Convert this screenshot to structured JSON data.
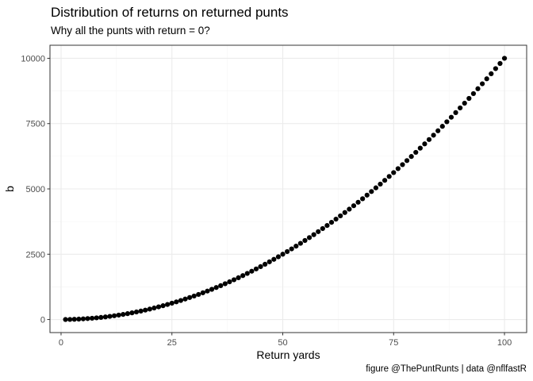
{
  "chart_data": {
    "type": "scatter",
    "title": "Distribution of returns on returned punts",
    "subtitle": "Why all the punts with return = 0?",
    "caption": "figure @ThePuntRunts | data @nflfastR",
    "xlabel": "Return yards",
    "ylabel": "b",
    "xlim": [
      -2.5,
      105
    ],
    "ylim": [
      -500,
      10500
    ],
    "x_ticks": [
      0,
      25,
      50,
      75,
      100
    ],
    "y_ticks": [
      0,
      2500,
      5000,
      7500,
      10000
    ],
    "x_tick_labels": [
      "0",
      "25",
      "50",
      "75",
      "100"
    ],
    "y_tick_labels": [
      "0",
      "2500",
      "5000",
      "7500",
      "10000"
    ],
    "grid": true,
    "series": [
      {
        "color": "#000000",
        "points": [
          [
            1,
            1
          ],
          [
            2,
            4
          ],
          [
            3,
            9
          ],
          [
            4,
            16
          ],
          [
            5,
            25
          ],
          [
            6,
            36
          ],
          [
            7,
            49
          ],
          [
            8,
            64
          ],
          [
            9,
            81
          ],
          [
            10,
            100
          ],
          [
            11,
            121
          ],
          [
            12,
            144
          ],
          [
            13,
            169
          ],
          [
            14,
            196
          ],
          [
            15,
            225
          ],
          [
            16,
            256
          ],
          [
            17,
            289
          ],
          [
            18,
            324
          ],
          [
            19,
            361
          ],
          [
            20,
            400
          ],
          [
            21,
            441
          ],
          [
            22,
            484
          ],
          [
            23,
            529
          ],
          [
            24,
            576
          ],
          [
            25,
            625
          ],
          [
            26,
            676
          ],
          [
            27,
            729
          ],
          [
            28,
            784
          ],
          [
            29,
            841
          ],
          [
            30,
            900
          ],
          [
            31,
            961
          ],
          [
            32,
            1024
          ],
          [
            33,
            1089
          ],
          [
            34,
            1156
          ],
          [
            35,
            1225
          ],
          [
            36,
            1296
          ],
          [
            37,
            1369
          ],
          [
            38,
            1444
          ],
          [
            39,
            1521
          ],
          [
            40,
            1600
          ],
          [
            41,
            1681
          ],
          [
            42,
            1764
          ],
          [
            43,
            1849
          ],
          [
            44,
            1936
          ],
          [
            45,
            2025
          ],
          [
            46,
            2116
          ],
          [
            47,
            2209
          ],
          [
            48,
            2304
          ],
          [
            49,
            2401
          ],
          [
            50,
            2500
          ],
          [
            51,
            2601
          ],
          [
            52,
            2704
          ],
          [
            53,
            2809
          ],
          [
            54,
            2916
          ],
          [
            55,
            3025
          ],
          [
            56,
            3136
          ],
          [
            57,
            3249
          ],
          [
            58,
            3364
          ],
          [
            59,
            3481
          ],
          [
            60,
            3600
          ],
          [
            61,
            3721
          ],
          [
            62,
            3844
          ],
          [
            63,
            3969
          ],
          [
            64,
            4096
          ],
          [
            65,
            4225
          ],
          [
            66,
            4356
          ],
          [
            67,
            4489
          ],
          [
            68,
            4624
          ],
          [
            69,
            4761
          ],
          [
            70,
            4900
          ],
          [
            71,
            5041
          ],
          [
            72,
            5184
          ],
          [
            73,
            5329
          ],
          [
            74,
            5476
          ],
          [
            75,
            5625
          ],
          [
            76,
            5776
          ],
          [
            77,
            5929
          ],
          [
            78,
            6084
          ],
          [
            79,
            6241
          ],
          [
            80,
            6400
          ],
          [
            81,
            6561
          ],
          [
            82,
            6724
          ],
          [
            83,
            6889
          ],
          [
            84,
            7056
          ],
          [
            85,
            7225
          ],
          [
            86,
            7396
          ],
          [
            87,
            7569
          ],
          [
            88,
            7744
          ],
          [
            89,
            7921
          ],
          [
            90,
            8100
          ],
          [
            91,
            8281
          ],
          [
            92,
            8464
          ],
          [
            93,
            8649
          ],
          [
            94,
            8836
          ],
          [
            95,
            9025
          ],
          [
            96,
            9216
          ],
          [
            97,
            9409
          ],
          [
            98,
            9604
          ],
          [
            99,
            9801
          ],
          [
            100,
            10000
          ]
        ]
      }
    ]
  },
  "colors": {
    "panel_border": "#333333",
    "grid_major": "#ebebeb",
    "grid_minor": "#f5f5f5",
    "points": "#000000"
  }
}
